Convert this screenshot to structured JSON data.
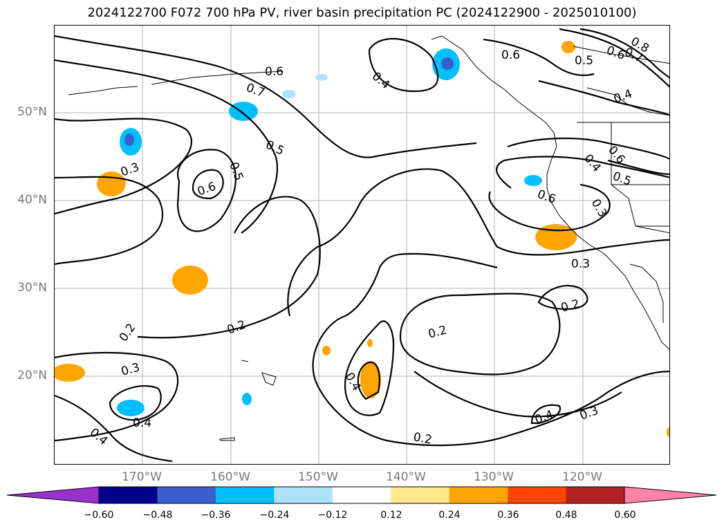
{
  "title": "2024122700 F072 700 hPa PV, river basin precipitation PC (2024122900 - 2025010100)",
  "latitude_labels": [
    "50°N",
    "40°N",
    "30°N",
    "20°N"
  ],
  "longitude_labels": [
    "170°W",
    "160°W",
    "150°W",
    "140°W",
    "130°W",
    "120°W"
  ],
  "contour_labels": [
    "0.6",
    "0.7",
    "0.5",
    "0.4",
    "0.3",
    "0.2",
    "0.8"
  ],
  "colorbar": {
    "tick_labels": [
      "−0.60",
      "−0.48",
      "−0.36",
      "−0.24",
      "−0.12",
      "0.12",
      "0.24",
      "0.36",
      "0.48",
      "0.60"
    ],
    "colors": [
      "#9932cc",
      "#00008b",
      "#3a5fcd",
      "#00bfff",
      "#ade2f9",
      "#ffffff",
      "#ffe88c",
      "#ffa500",
      "#ff4500",
      "#b22222",
      "#ff82ab"
    ]
  }
}
